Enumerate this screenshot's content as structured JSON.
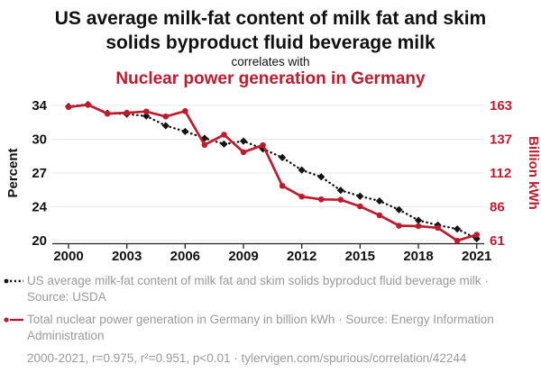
{
  "header": {
    "title": "US average milk-fat content of milk fat and skim solids byproduct fluid beverage milk",
    "correlates_label": "correlates with",
    "subtitle": "Nuclear power generation in Germany"
  },
  "chart_data": {
    "type": "line",
    "x": [
      2000,
      2001,
      2002,
      2003,
      2004,
      2005,
      2006,
      2007,
      2008,
      2009,
      2010,
      2011,
      2012,
      2013,
      2014,
      2015,
      2016,
      2017,
      2018,
      2019,
      2020,
      2021
    ],
    "x_tick_labels": [
      "2000",
      "2003",
      "2006",
      "2009",
      "2012",
      "2015",
      "2018",
      "2021"
    ],
    "series": [
      {
        "name": "US average milk-fat content of milk fat and skim solids byproduct fluid beverage milk",
        "axis": "left",
        "color": "#141414",
        "line_style": "dotted",
        "marker": "diamond",
        "values": [
          33.9,
          34.1,
          33.2,
          33.1,
          32.9,
          31.9,
          31.3,
          30.6,
          30.0,
          30.3,
          29.5,
          28.6,
          27.3,
          26.6,
          25.2,
          24.6,
          24.1,
          23.2,
          22.1,
          21.6,
          21.2,
          20.2
        ]
      },
      {
        "name": "Total nuclear power generation in Germany in billion kWh",
        "axis": "right",
        "color": "#bf1a2d",
        "line_style": "solid",
        "marker": "circle",
        "values": [
          161.8,
          163.5,
          156.8,
          157.4,
          158.4,
          154.6,
          158.7,
          133.2,
          140.9,
          127.7,
          133.0,
          102.3,
          94.2,
          92.1,
          91.8,
          86.8,
          80.1,
          72.2,
          71.9,
          70.6,
          60.9,
          65.4
        ]
      }
    ],
    "left_axis": {
      "label": "Percent",
      "tick_labels": [
        "34",
        "30",
        "27",
        "24",
        "20"
      ],
      "range": [
        20,
        34
      ]
    },
    "right_axis": {
      "label": "Billion kWh",
      "tick_labels": [
        "163",
        "137",
        "112",
        "86",
        "61"
      ],
      "range": [
        61,
        163
      ]
    },
    "grid": true,
    "legend_position": "bottom"
  },
  "legend": [
    {
      "label": "US average milk-fat content of milk fat and skim solids byproduct fluid beverage milk · Source: USDA"
    },
    {
      "label": "Total nuclear power generation in Germany in billion kWh · Source: Energy Information Administration"
    }
  ],
  "footer": {
    "text": "2000-2021, r=0.975, r²=0.951, p<0.01 · tylervigen.com/spurious/correlation/42244"
  },
  "colors": {
    "accent_red": "#bf1a2d",
    "muted_text": "#999999",
    "grid": "#e7e7e7",
    "series_black": "#141414"
  }
}
